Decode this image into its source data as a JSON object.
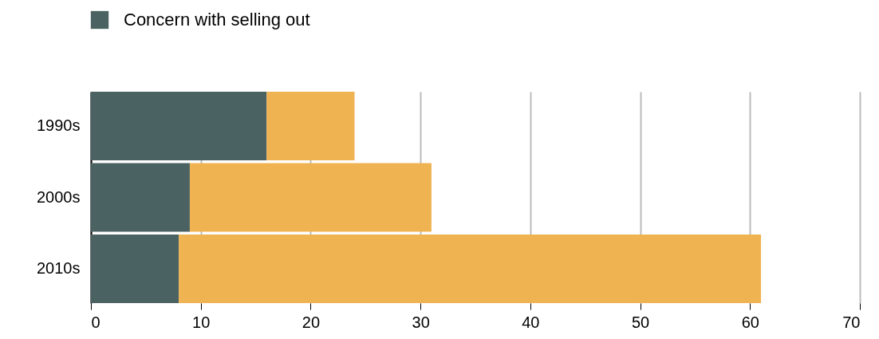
{
  "chart_data": {
    "type": "bar",
    "orientation": "horizontal",
    "stacked": true,
    "categories": [
      "1990s",
      "2000s",
      "2010s"
    ],
    "series": [
      {
        "name": "Concern with selling out",
        "color": "#4a6262",
        "values": [
          16,
          9,
          8
        ]
      },
      {
        "color": "#f0b351",
        "values": [
          8,
          22,
          53
        ]
      }
    ],
    "xlim": [
      0,
      70
    ],
    "xticks": [
      0,
      10,
      20,
      30,
      40,
      50,
      60,
      70
    ],
    "grid": "x",
    "legend": "top left"
  }
}
